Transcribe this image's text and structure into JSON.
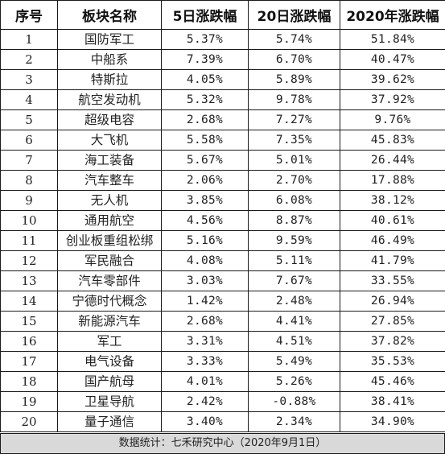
{
  "headers": [
    "序号",
    "板块名称",
    "5日涨跌幅",
    "20日涨跌幅",
    "2020年涨跌幅"
  ],
  "rows": [
    {
      "no": "1",
      "name": "国防军工",
      "d5": "5.37%",
      "d20": "5.74%",
      "ytd": "51.84%"
    },
    {
      "no": "2",
      "name": "中船系",
      "d5": "7.39%",
      "d20": "6.70%",
      "ytd": "40.47%"
    },
    {
      "no": "3",
      "name": "特斯拉",
      "d5": "4.05%",
      "d20": "5.89%",
      "ytd": "39.62%"
    },
    {
      "no": "4",
      "name": "航空发动机",
      "d5": "5.32%",
      "d20": "9.78%",
      "ytd": "37.92%"
    },
    {
      "no": "5",
      "name": "超级电容",
      "d5": "2.68%",
      "d20": "7.27%",
      "ytd": "9.76%"
    },
    {
      "no": "6",
      "name": "大飞机",
      "d5": "5.58%",
      "d20": "7.35%",
      "ytd": "45.83%"
    },
    {
      "no": "7",
      "name": "海工装备",
      "d5": "5.67%",
      "d20": "5.01%",
      "ytd": "26.44%"
    },
    {
      "no": "8",
      "name": "汽车整车",
      "d5": "2.06%",
      "d20": "2.70%",
      "ytd": "17.88%"
    },
    {
      "no": "9",
      "name": "无人机",
      "d5": "3.85%",
      "d20": "6.08%",
      "ytd": "38.12%"
    },
    {
      "no": "10",
      "name": "通用航空",
      "d5": "4.56%",
      "d20": "8.87%",
      "ytd": "40.61%"
    },
    {
      "no": "11",
      "name": "创业板重组松绑",
      "d5": "5.16%",
      "d20": "9.59%",
      "ytd": "46.49%"
    },
    {
      "no": "12",
      "name": "军民融合",
      "d5": "4.08%",
      "d20": "5.11%",
      "ytd": "41.79%"
    },
    {
      "no": "13",
      "name": "汽车零部件",
      "d5": "3.03%",
      "d20": "7.67%",
      "ytd": "33.55%"
    },
    {
      "no": "14",
      "name": "宁德时代概念",
      "d5": "1.42%",
      "d20": "2.48%",
      "ytd": "26.94%"
    },
    {
      "no": "15",
      "name": "新能源汽车",
      "d5": "2.68%",
      "d20": "4.41%",
      "ytd": "27.85%"
    },
    {
      "no": "16",
      "name": "军工",
      "d5": "3.31%",
      "d20": "4.51%",
      "ytd": "37.82%"
    },
    {
      "no": "17",
      "name": "电气设备",
      "d5": "3.33%",
      "d20": "5.49%",
      "ytd": "35.53%"
    },
    {
      "no": "18",
      "name": "国产航母",
      "d5": "4.01%",
      "d20": "5.26%",
      "ytd": "45.46%"
    },
    {
      "no": "19",
      "name": "卫星导航",
      "d5": "2.42%",
      "d20": "-0.88%",
      "ytd": "38.41%"
    },
    {
      "no": "20",
      "name": "量子通信",
      "d5": "3.40%",
      "d20": "2.34%",
      "ytd": "34.90%"
    }
  ],
  "footer": "数据统计：七禾研究中心（2020年9月1日）",
  "colors": {
    "footer_bg": "#d9d9d9",
    "border": "#1a1a1a"
  }
}
